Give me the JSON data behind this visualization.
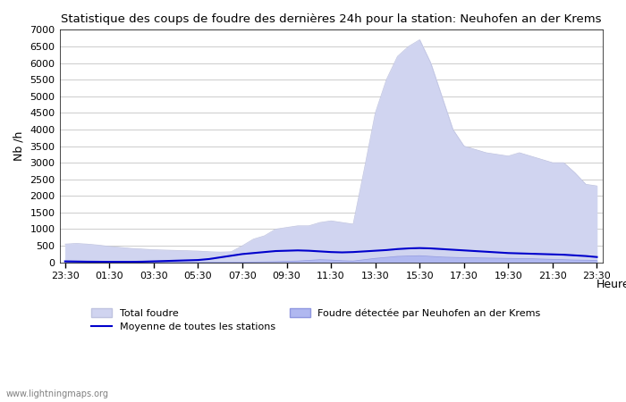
{
  "title": "Statistique des coups de foudre des dernières 24h pour la station: Neuhofen an der Krems",
  "xlabel": "Heure",
  "ylabel": "Nb /h",
  "xlim_start": -0.5,
  "xlim_end": 48.5,
  "ylim": [
    0,
    7000
  ],
  "yticks": [
    0,
    500,
    1000,
    1500,
    2000,
    2500,
    3000,
    3500,
    4000,
    4500,
    5000,
    5500,
    6000,
    6500,
    7000
  ],
  "xtick_labels": [
    "23:30",
    "01:30",
    "03:30",
    "05:30",
    "07:30",
    "09:30",
    "11:30",
    "13:30",
    "15:30",
    "17:30",
    "19:30",
    "21:30",
    "23:30"
  ],
  "xtick_positions": [
    0,
    4,
    8,
    12,
    16,
    20,
    24,
    28,
    32,
    36,
    40,
    44,
    48
  ],
  "bg_color": "#ffffff",
  "plot_bg_color": "#ffffff",
  "grid_color": "#cccccc",
  "total_foudre_color": "#d0d4f0",
  "total_foudre_edge": "#c0c4e0",
  "foudre_detectee_color": "#b0b8f0",
  "foudre_detectee_edge": "#9098e0",
  "moyenne_color": "#0000cc",
  "watermark": "www.lightningmaps.org",
  "legend_total": "Total foudre",
  "legend_moyenne": "Moyenne de toutes les stations",
  "legend_detectee": "Foudre détectée par Neuhofen an der Krems",
  "total_foudre": [
    550,
    570,
    550,
    520,
    480,
    450,
    420,
    400,
    380,
    370,
    360,
    350,
    340,
    320,
    310,
    320,
    500,
    700,
    800,
    1000,
    1050,
    1100,
    1100,
    1200,
    1250,
    1200,
    1150,
    2800,
    4500,
    5500,
    6200,
    6500,
    6700,
    6000,
    5000,
    4000,
    3500,
    3400,
    3300,
    3250,
    3200,
    3300,
    3200,
    3100,
    3000,
    3000,
    2700,
    2350,
    2300
  ],
  "foudre_detectee": [
    5,
    5,
    5,
    3,
    3,
    3,
    2,
    2,
    2,
    2,
    2,
    2,
    2,
    2,
    2,
    3,
    5,
    10,
    15,
    20,
    30,
    40,
    60,
    80,
    70,
    50,
    40,
    80,
    120,
    150,
    180,
    190,
    200,
    180,
    160,
    150,
    140,
    135,
    130,
    125,
    120,
    115,
    110,
    100,
    90,
    80,
    70,
    65,
    60
  ],
  "moyenne": [
    30,
    25,
    20,
    18,
    15,
    15,
    15,
    20,
    30,
    40,
    50,
    60,
    70,
    100,
    150,
    200,
    250,
    280,
    310,
    340,
    350,
    360,
    350,
    330,
    310,
    300,
    310,
    330,
    350,
    370,
    400,
    420,
    430,
    420,
    400,
    380,
    360,
    340,
    320,
    300,
    280,
    270,
    260,
    250,
    240,
    230,
    210,
    190,
    160
  ]
}
